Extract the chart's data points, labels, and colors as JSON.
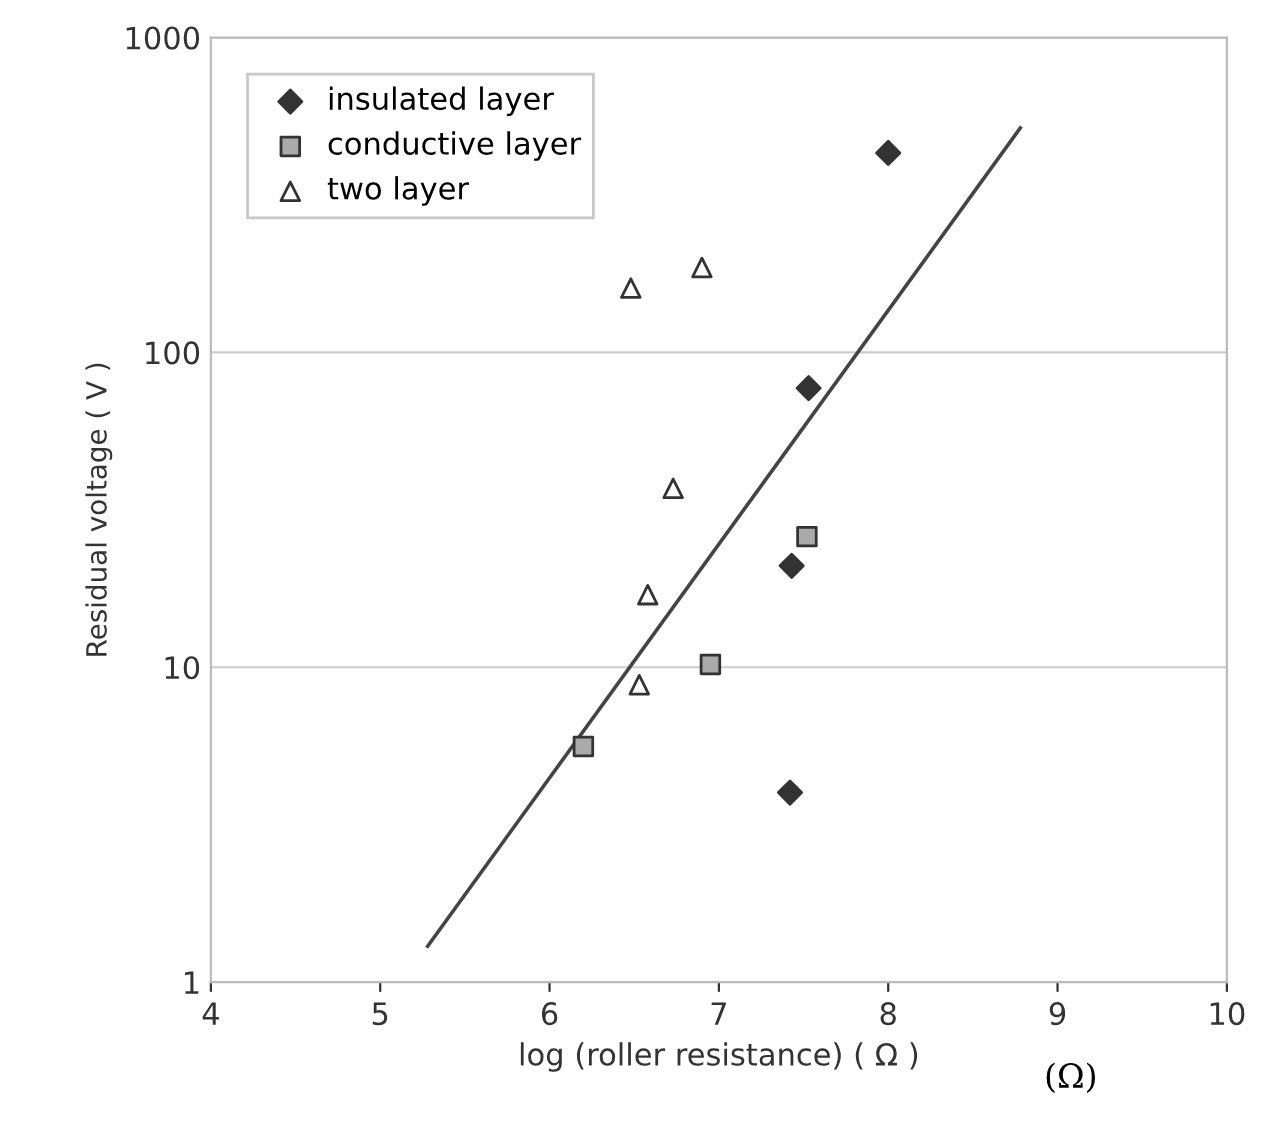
{
  "chart_data": {
    "type": "scatter",
    "xlabel": "log (roller resistance) ( Ω )",
    "ylabel": "Residual voltage ( V )",
    "xlim": [
      4,
      10
    ],
    "xticks": [
      4,
      5,
      6,
      7,
      8,
      9,
      10
    ],
    "ylim": [
      1,
      1000
    ],
    "yticks": [
      1,
      10,
      100,
      1000
    ],
    "log": "y",
    "grid": "y",
    "legend": "top left",
    "annotations": [
      "(Ω)"
    ],
    "series": [
      {
        "name": "insulated layer",
        "color": "#333333",
        "marker": "diamond",
        "x": [
          8.0,
          7.53,
          7.43,
          7.42
        ],
        "values": [
          430,
          77,
          21,
          4.0
        ]
      },
      {
        "name": "conductive layer",
        "color": "#aaaaaa",
        "marker": "square",
        "x": [
          7.52,
          6.95,
          6.2
        ],
        "values": [
          26,
          10.2,
          5.6
        ]
      },
      {
        "name": "two layer",
        "color": "#ffffff",
        "marker": "triangle",
        "x": [
          6.48,
          6.9,
          6.73,
          6.58,
          6.53
        ],
        "values": [
          160,
          186,
          37,
          17,
          8.8
        ]
      },
      {
        "type": "line",
        "color": "#444444",
        "x": [
          5.28,
          8.78
        ],
        "values": [
          1.3,
          516
        ]
      }
    ]
  }
}
